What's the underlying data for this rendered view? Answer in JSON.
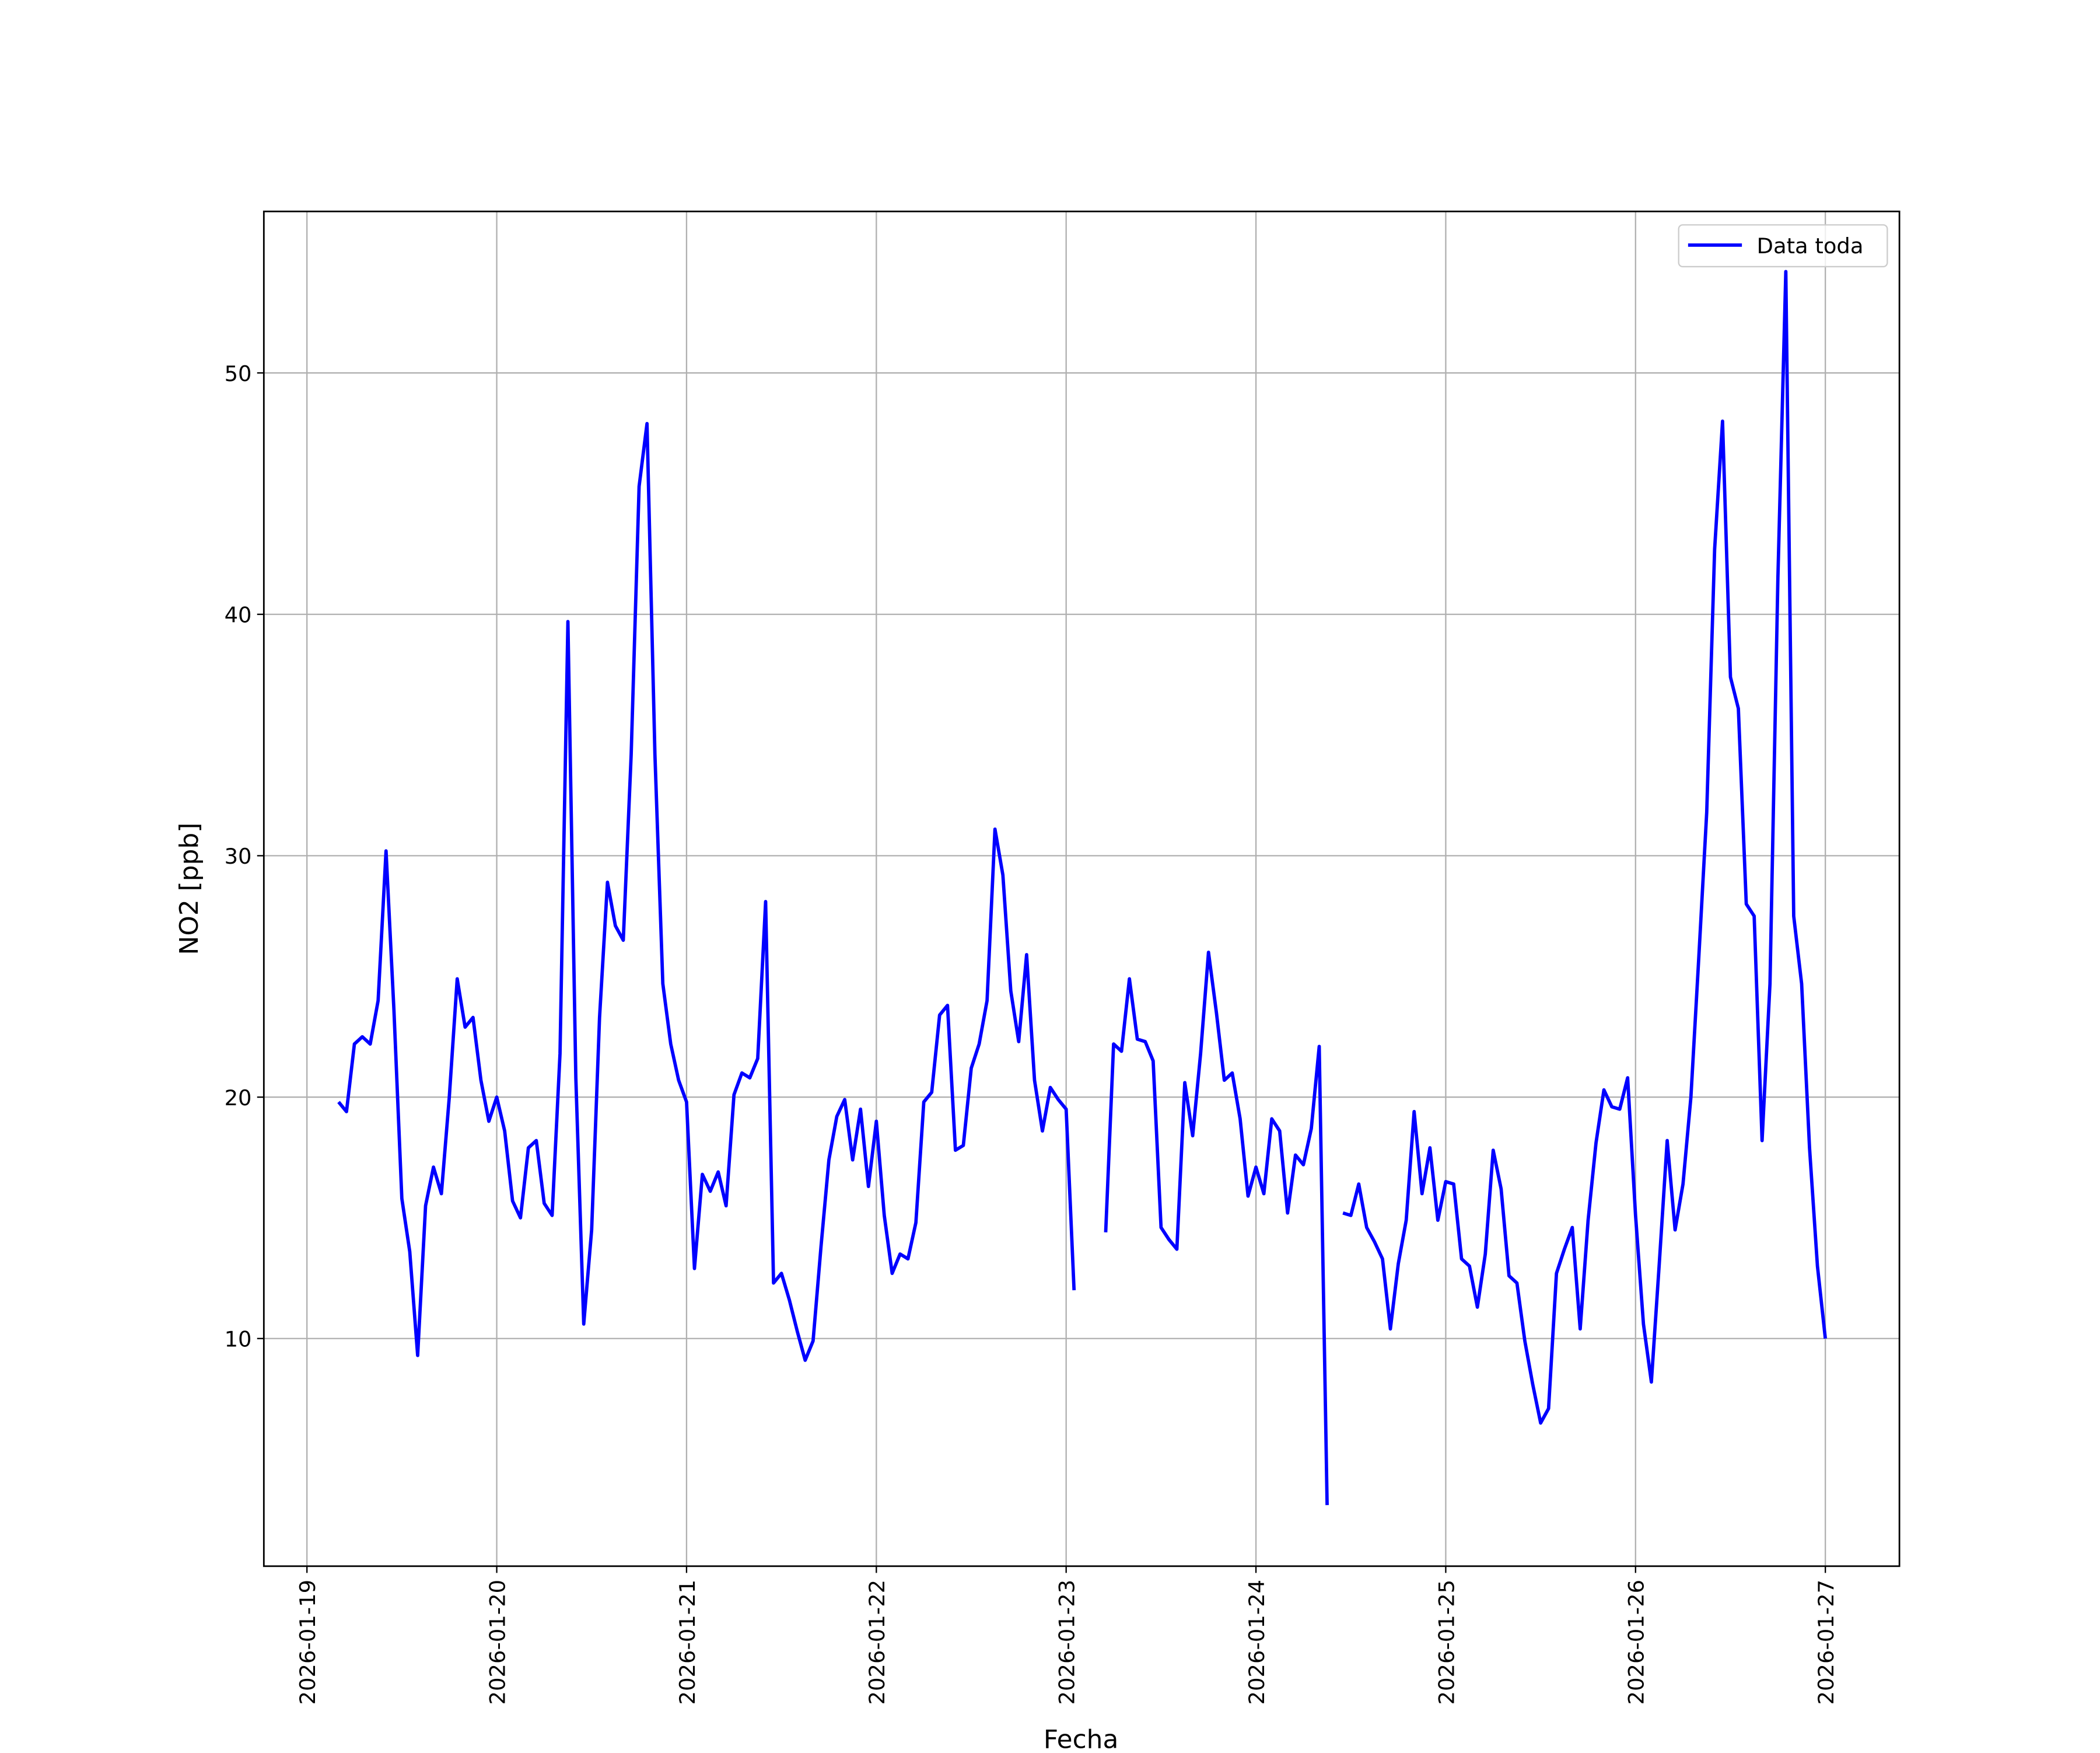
{
  "chart_data": {
    "type": "line",
    "xlabel": "Fecha",
    "ylabel": "NO2 [ppb]",
    "grid": true,
    "legend": "upper right",
    "xlim": [
      "2026-01-18 18:33",
      "2026-01-27 09:22"
    ],
    "xticks": [
      "2026-01-19",
      "2026-01-20",
      "2026-01-21",
      "2026-01-22",
      "2026-01-23",
      "2026-01-24",
      "2026-01-25",
      "2026-01-26",
      "2026-01-27"
    ],
    "ylim": [
      0.57,
      56.69
    ],
    "yticks": [
      10,
      20,
      30,
      40,
      50
    ],
    "x": [
      "2026-01-19 04:00",
      "2026-01-19 05:00",
      "2026-01-19 06:00",
      "2026-01-19 07:00",
      "2026-01-19 08:00",
      "2026-01-19 09:00",
      "2026-01-19 10:00",
      "2026-01-19 11:00",
      "2026-01-19 12:00",
      "2026-01-19 13:00",
      "2026-01-19 14:00",
      "2026-01-19 15:00",
      "2026-01-19 16:00",
      "2026-01-19 17:00",
      "2026-01-19 18:00",
      "2026-01-19 19:00",
      "2026-01-19 20:00",
      "2026-01-19 21:00",
      "2026-01-19 22:00",
      "2026-01-19 23:00",
      "2026-01-20 00:00",
      "2026-01-20 01:00",
      "2026-01-20 02:00",
      "2026-01-20 03:00",
      "2026-01-20 04:00",
      "2026-01-20 05:00",
      "2026-01-20 06:00",
      "2026-01-20 07:00",
      "2026-01-20 08:00",
      "2026-01-20 09:00",
      "2026-01-20 10:00",
      "2026-01-20 11:00",
      "2026-01-20 12:00",
      "2026-01-20 13:00",
      "2026-01-20 14:00",
      "2026-01-20 15:00",
      "2026-01-20 16:00",
      "2026-01-20 17:00",
      "2026-01-20 18:00",
      "2026-01-20 19:00",
      "2026-01-20 20:00",
      "2026-01-20 21:00",
      "2026-01-20 22:00",
      "2026-01-20 23:00",
      "2026-01-21 00:00",
      "2026-01-21 01:00",
      "2026-01-21 02:00",
      "2026-01-21 03:00",
      "2026-01-21 04:00",
      "2026-01-21 05:00",
      "2026-01-21 06:00",
      "2026-01-21 07:00",
      "2026-01-21 08:00",
      "2026-01-21 09:00",
      "2026-01-21 10:00",
      "2026-01-21 11:00",
      "2026-01-21 12:00",
      "2026-01-21 13:00",
      "2026-01-21 14:00",
      "2026-01-21 15:00",
      "2026-01-21 16:00",
      "2026-01-21 17:00",
      "2026-01-21 18:00",
      "2026-01-21 19:00",
      "2026-01-21 20:00",
      "2026-01-21 21:00",
      "2026-01-21 22:00",
      "2026-01-21 23:00",
      "2026-01-22 00:00",
      "2026-01-22 01:00",
      "2026-01-22 02:00",
      "2026-01-22 03:00",
      "2026-01-22 04:00",
      "2026-01-22 05:00",
      "2026-01-22 06:00",
      "2026-01-22 07:00",
      "2026-01-22 08:00",
      "2026-01-22 09:00",
      "2026-01-22 10:00",
      "2026-01-22 11:00",
      "2026-01-22 12:00",
      "2026-01-22 13:00",
      "2026-01-22 14:00",
      "2026-01-22 15:00",
      "2026-01-22 16:00",
      "2026-01-22 17:00",
      "2026-01-22 18:00",
      "2026-01-22 19:00",
      "2026-01-22 20:00",
      "2026-01-22 21:00",
      "2026-01-22 22:00",
      "2026-01-22 23:00",
      "2026-01-23 00:00",
      "2026-01-23 01:00",
      "2026-01-23 02:00",
      "2026-01-23 03:00",
      "2026-01-23 04:00",
      "2026-01-23 05:00",
      "2026-01-23 06:00",
      "2026-01-23 07:00",
      "2026-01-23 08:00",
      "2026-01-23 09:00",
      "2026-01-23 10:00",
      "2026-01-23 11:00",
      "2026-01-23 12:00",
      "2026-01-23 13:00",
      "2026-01-23 14:00",
      "2026-01-23 15:00",
      "2026-01-23 16:00",
      "2026-01-23 17:00",
      "2026-01-23 18:00",
      "2026-01-23 19:00",
      "2026-01-23 20:00",
      "2026-01-23 21:00",
      "2026-01-23 22:00",
      "2026-01-23 23:00",
      "2026-01-24 00:00",
      "2026-01-24 01:00",
      "2026-01-24 02:00",
      "2026-01-24 03:00",
      "2026-01-24 04:00",
      "2026-01-24 05:00",
      "2026-01-24 06:00",
      "2026-01-24 07:00",
      "2026-01-24 08:00",
      "2026-01-24 09:00",
      "2026-01-24 10:00",
      "2026-01-24 11:00",
      "2026-01-24 12:00",
      "2026-01-24 13:00",
      "2026-01-24 14:00",
      "2026-01-24 15:00",
      "2026-01-24 16:00",
      "2026-01-24 17:00",
      "2026-01-24 18:00",
      "2026-01-24 19:00",
      "2026-01-24 20:00",
      "2026-01-24 21:00",
      "2026-01-24 22:00",
      "2026-01-24 23:00",
      "2026-01-25 00:00",
      "2026-01-25 01:00",
      "2026-01-25 02:00",
      "2026-01-25 03:00",
      "2026-01-25 04:00",
      "2026-01-25 05:00",
      "2026-01-25 06:00",
      "2026-01-25 07:00",
      "2026-01-25 08:00",
      "2026-01-25 09:00",
      "2026-01-25 10:00",
      "2026-01-25 11:00",
      "2026-01-25 12:00",
      "2026-01-25 13:00",
      "2026-01-25 14:00",
      "2026-01-25 15:00",
      "2026-01-25 16:00",
      "2026-01-25 17:00",
      "2026-01-25 18:00",
      "2026-01-25 19:00",
      "2026-01-25 20:00",
      "2026-01-25 21:00",
      "2026-01-25 22:00",
      "2026-01-25 23:00",
      "2026-01-26 00:00",
      "2026-01-26 01:00",
      "2026-01-26 02:00",
      "2026-01-26 03:00",
      "2026-01-26 04:00",
      "2026-01-26 05:00",
      "2026-01-26 06:00",
      "2026-01-26 07:00",
      "2026-01-26 08:00",
      "2026-01-26 09:00",
      "2026-01-26 10:00",
      "2026-01-26 11:00",
      "2026-01-26 12:00",
      "2026-01-26 13:00",
      "2026-01-26 14:00",
      "2026-01-26 15:00",
      "2026-01-26 16:00",
      "2026-01-26 17:00",
      "2026-01-26 18:00",
      "2026-01-26 19:00",
      "2026-01-26 20:00",
      "2026-01-26 21:00",
      "2026-01-26 22:00",
      "2026-01-26 23:00",
      "2026-01-27 00:00"
    ],
    "series": [
      {
        "name": "Data toda",
        "color": "#0000ff",
        "values": [
          19.8,
          19.4,
          22.2,
          22.5,
          22.2,
          24.0,
          30.2,
          23.6,
          15.8,
          13.6,
          9.3,
          15.5,
          17.1,
          16.0,
          20.0,
          24.9,
          22.9,
          23.3,
          20.7,
          19.0,
          20.0,
          18.6,
          15.7,
          15.0,
          17.9,
          18.2,
          15.6,
          15.1,
          21.8,
          39.7,
          20.8,
          10.6,
          14.5,
          23.3,
          28.9,
          27.1,
          26.5,
          34.2,
          45.3,
          47.9,
          34.2,
          24.7,
          22.2,
          20.7,
          19.8,
          12.9,
          16.8,
          16.1,
          16.9,
          15.5,
          20.1,
          21.0,
          20.8,
          21.6,
          28.1,
          12.3,
          12.7,
          11.6,
          10.3,
          9.1,
          9.9,
          13.8,
          17.4,
          19.2,
          19.9,
          17.4,
          19.5,
          16.3,
          19.0,
          15.1,
          12.7,
          13.5,
          13.3,
          14.8,
          19.8,
          20.2,
          23.4,
          23.8,
          17.8,
          18.0,
          21.2,
          22.2,
          24.0,
          31.1,
          29.2,
          24.4,
          22.3,
          25.9,
          20.7,
          18.6,
          20.4,
          19.9,
          19.5,
          12.0,
          null,
          null,
          null,
          14.4,
          22.2,
          21.9,
          24.9,
          22.4,
          22.3,
          21.5,
          14.6,
          14.1,
          13.7,
          20.6,
          18.4,
          21.8,
          26.0,
          23.5,
          20.7,
          21.0,
          19.1,
          15.9,
          17.1,
          16.0,
          19.1,
          18.6,
          15.2,
          17.6,
          17.2,
          18.7,
          22.1,
          3.1,
          null,
          15.2,
          15.1,
          16.4,
          14.6,
          14.0,
          13.3,
          10.4,
          13.1,
          14.9,
          19.4,
          16.0,
          17.9,
          14.9,
          16.5,
          16.4,
          13.3,
          13.0,
          11.3,
          13.5,
          17.8,
          16.2,
          12.6,
          12.3,
          9.9,
          8.1,
          6.5,
          7.1,
          12.7,
          13.7,
          14.6,
          10.4,
          14.9,
          18.1,
          20.3,
          19.6,
          19.5,
          20.8,
          15.1,
          10.6,
          8.2,
          13.1,
          18.2,
          14.5,
          16.4,
          20.0,
          25.8,
          31.8,
          42.7,
          48.0,
          37.4,
          36.1,
          28.0,
          27.5,
          18.2,
          24.7,
          41.5,
          54.2,
          27.5,
          24.7,
          17.9,
          13.0,
          10.0
        ]
      }
    ]
  }
}
